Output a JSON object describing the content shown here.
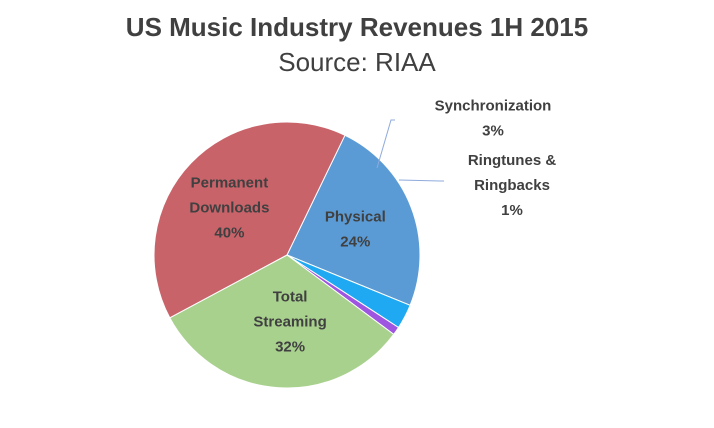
{
  "chart_data": {
    "type": "pie",
    "title": "US Music Industry Revenues 1H 2015",
    "subtitle": "Source: RIAA",
    "slices": [
      {
        "name": "Physical",
        "value": 24,
        "value_label": "24%",
        "label_lines": [
          "Physical"
        ],
        "color": "#5B9BD5"
      },
      {
        "name": "Synchronization",
        "value": 3,
        "value_label": "3%",
        "label_lines": [
          "Synchronization"
        ],
        "color": "#1FA9F2"
      },
      {
        "name": "Ringtunes & Ringbacks",
        "value": 1,
        "value_label": "1%",
        "label_lines": [
          "Ringtunes &",
          "Ringbacks"
        ],
        "color": "#9E55E0"
      },
      {
        "name": "Total Streaming",
        "value": 32,
        "value_label": "32%",
        "label_lines": [
          "Total",
          "Streaming"
        ],
        "color": "#A9D18E"
      },
      {
        "name": "Permanent Downloads",
        "value": 40,
        "value_label": "40%",
        "label_lines": [
          "Permanent",
          "Downloads"
        ],
        "color": "#C9636A"
      }
    ]
  }
}
